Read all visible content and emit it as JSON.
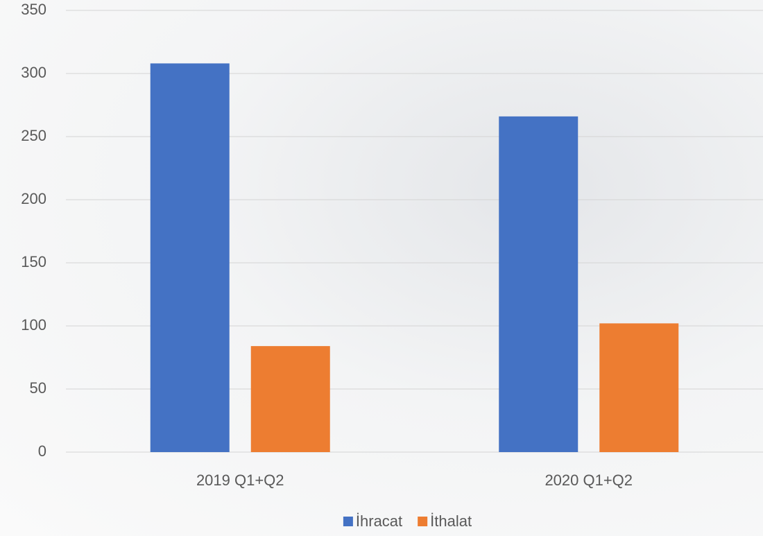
{
  "chart_data": {
    "type": "bar",
    "categories": [
      "2019 Q1+Q2",
      "2020 Q1+Q2"
    ],
    "series": [
      {
        "name": "İhracat",
        "color": "#4472c4",
        "values": [
          308,
          266
        ]
      },
      {
        "name": "İthalat",
        "color": "#ed7d31",
        "values": [
          84,
          102
        ]
      }
    ],
    "ylim": [
      0,
      350
    ],
    "yticks": [
      0,
      50,
      100,
      150,
      200,
      250,
      300,
      350
    ],
    "grid": true,
    "legend": "bottom"
  }
}
